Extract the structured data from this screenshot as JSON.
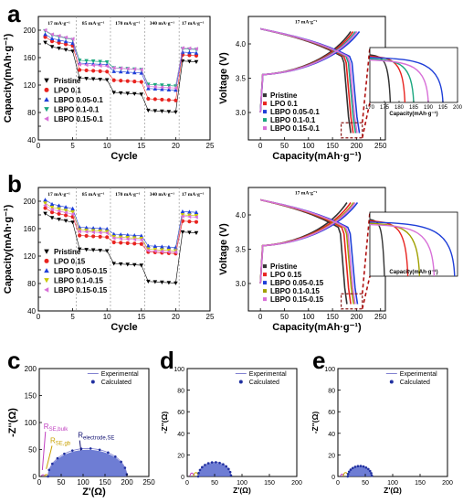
{
  "chart_data": [
    {
      "id": "a-left",
      "type": "scatter",
      "panel_label": "a",
      "xlabel": "Cycle",
      "ylabel": "Capacity(mAh·g⁻¹)",
      "xlim": [
        0,
        25
      ],
      "ylim": [
        40,
        220
      ],
      "xticks": [
        0,
        5,
        10,
        15,
        20,
        25
      ],
      "yticks": [
        40,
        60,
        80,
        100,
        120,
        140,
        160,
        180,
        200,
        220
      ],
      "ytick_labels": [
        "40",
        "",
        "80",
        "",
        "120",
        "",
        "160",
        "",
        "200",
        ""
      ],
      "rate_labels": [
        "17 mA·g⁻¹",
        "85 mA·g⁻¹",
        "170 mA·g⁻¹",
        "340 mA·g⁻¹",
        "17 mA·g⁻¹"
      ],
      "rate_dividers": [
        5.5,
        10.5,
        15.5,
        20.5
      ],
      "legend": "bottom-left",
      "series": [
        {
          "name": "Pristine",
          "color": "#000000",
          "marker": "tri-down",
          "levels": [
            178,
            130,
            109,
            83,
            155
          ]
        },
        {
          "name": "LPO 0.1",
          "color": "#e8231f",
          "marker": "circle",
          "levels": [
            186,
            142,
            127,
            100,
            164
          ]
        },
        {
          "name": "LBPO 0.05-0.1",
          "color": "#1f3fd8",
          "marker": "tri-up",
          "levels": [
            190,
            152,
            140,
            115,
            168
          ]
        },
        {
          "name": "LBPO 0.1-0.1",
          "color": "#1aa77f",
          "marker": "tri-down",
          "levels": [
            195,
            156,
            145,
            121,
            173
          ]
        },
        {
          "name": "LBPO 0.15-0.1",
          "color": "#d870d8",
          "marker": "tri-left",
          "levels": [
            196,
            150,
            145,
            118,
            174
          ]
        }
      ]
    },
    {
      "id": "a-right",
      "type": "line",
      "xlabel": "Capacity(mAh·g⁻¹)",
      "ylabel": "Voltage (V)",
      "xlim": [
        -25,
        260
      ],
      "ylim": [
        2.6,
        4.4
      ],
      "xticks": [
        0,
        50,
        100,
        150,
        200,
        250
      ],
      "yticks": [
        3.0,
        3.5,
        4.0
      ],
      "rate_text": "17 mA·g⁻¹",
      "legend": "bottom-center",
      "series": [
        {
          "name": "Pristine",
          "color": "#333333",
          "end_capacity": 188
        },
        {
          "name": "LPO 0.1",
          "color": "#e8231f",
          "end_capacity": 193
        },
        {
          "name": "LBPO 0.05-0.1",
          "color": "#1f3fd8",
          "end_capacity": 206
        },
        {
          "name": "LBPO 0.1-0.1",
          "color": "#1aa77f",
          "end_capacity": 198
        },
        {
          "name": "LBPO 0.15-0.1",
          "color": "#d870d8",
          "end_capacity": 201
        }
      ],
      "inset": {
        "xlabel": "Capacity(mAh·g⁻¹)",
        "xlim": [
          170,
          200
        ],
        "xticks": [
          170,
          175,
          180,
          185,
          190,
          195,
          200
        ],
        "ends": [
          177,
          182,
          195,
          185,
          190
        ]
      }
    },
    {
      "id": "b-left",
      "type": "scatter",
      "panel_label": "b",
      "xlabel": "Cycle",
      "ylabel": "Capacity(mAh·g⁻¹)",
      "xlim": [
        0,
        25
      ],
      "ylim": [
        40,
        220
      ],
      "xticks": [
        0,
        5,
        10,
        15,
        20,
        25
      ],
      "yticks": [
        40,
        60,
        80,
        100,
        120,
        140,
        160,
        180,
        200,
        220
      ],
      "ytick_labels": [
        "40",
        "",
        "80",
        "",
        "120",
        "",
        "160",
        "",
        "200",
        ""
      ],
      "rate_labels": [
        "17 mA·g⁻¹",
        "85 mA·g⁻¹",
        "170 mA·g⁻¹",
        "340 mA·g⁻¹",
        "17 mA·g⁻¹"
      ],
      "rate_dividers": [
        5.5,
        10.5,
        15.5,
        20.5
      ],
      "legend": "bottom-left",
      "series": [
        {
          "name": "Pristine",
          "color": "#000000",
          "marker": "tri-down",
          "levels": [
            178,
            130,
            109,
            83,
            155
          ]
        },
        {
          "name": "LPO 0.15",
          "color": "#e8231f",
          "marker": "circle",
          "levels": [
            186,
            150,
            140,
            126,
            171
          ]
        },
        {
          "name": "LBPO 0.05-0.15",
          "color": "#1f3fd8",
          "marker": "tri-up",
          "levels": [
            198,
            162,
            152,
            135,
            185
          ]
        },
        {
          "name": "LBPO 0.1-0.15",
          "color": "#c8c800",
          "marker": "tri-down",
          "levels": [
            193,
            158,
            148,
            130,
            180
          ]
        },
        {
          "name": "LBPO 0.15-0.15",
          "color": "#d870d8",
          "marker": "tri-left",
          "levels": [
            190,
            156,
            146,
            128,
            178
          ]
        }
      ]
    },
    {
      "id": "b-right",
      "type": "line",
      "xlabel": "Capacity(mAh·g⁻¹)",
      "ylabel": "Voltage (V)",
      "xlim": [
        -25,
        260
      ],
      "ylim": [
        2.6,
        4.4
      ],
      "xticks": [
        0,
        50,
        100,
        150,
        200,
        250
      ],
      "yticks": [
        3.0,
        3.5,
        4.0
      ],
      "rate_text": "17 mA·g⁻¹",
      "legend": "bottom-center",
      "series": [
        {
          "name": "Pristine",
          "color": "#333333",
          "end_capacity": 180
        },
        {
          "name": "LPO 0.15",
          "color": "#e8231f",
          "end_capacity": 188
        },
        {
          "name": "LBPO 0.05-0.15",
          "color": "#1f3fd8",
          "end_capacity": 202
        },
        {
          "name": "LBPO 0.1-0.15",
          "color": "#a0a000",
          "end_capacity": 194
        },
        {
          "name": "LBPO 0.15-0.15",
          "color": "#d870d8",
          "end_capacity": 197
        }
      ],
      "inset": {
        "xlabel": "Capacity(mAh·g⁻¹)",
        "xlim": [
          170,
          200
        ],
        "ends": [
          175,
          183,
          199,
          187,
          192
        ]
      }
    },
    {
      "id": "c",
      "type": "scatter",
      "panel_label": "c",
      "xlabel": "Z'(Ω)",
      "ylabel": "-Z''(Ω)",
      "xlim": [
        0,
        250
      ],
      "ylim": [
        0,
        200
      ],
      "xticks": [
        0,
        50,
        100,
        150,
        200,
        250
      ],
      "yticks": [
        0,
        50,
        100,
        150,
        200
      ],
      "legend": "top-right",
      "series": [
        {
          "name": "Experimental",
          "color": "#8080d0"
        },
        {
          "name": "Calculated",
          "color": "#2030a0"
        }
      ],
      "semicircles": [
        [
          5,
          12
        ],
        [
          12,
          20
        ],
        [
          20,
          200
        ]
      ],
      "annotations": [
        {
          "text": "R",
          "sub": "SE,bulk",
          "color": "#c040c0"
        },
        {
          "text": "R",
          "sub": "SE,gb",
          "color": "#c8a000"
        },
        {
          "text": "R",
          "sub": "electrode,SE",
          "color": "#101070"
        }
      ]
    },
    {
      "id": "d",
      "type": "scatter",
      "panel_label": "d",
      "xlabel": "Z'(Ω)",
      "ylabel": "-Z''(Ω)",
      "xlim": [
        0,
        200
      ],
      "ylim": [
        0,
        100
      ],
      "xticks": [
        0,
        50,
        100,
        150,
        200
      ],
      "yticks": [
        0,
        20,
        40,
        60,
        80,
        100
      ],
      "legend": "top-right",
      "series": [
        {
          "name": "Experimental",
          "color": "#8080d0"
        },
        {
          "name": "Calculated",
          "color": "#2030a0"
        }
      ],
      "semicircles": [
        [
          5,
          12
        ],
        [
          12,
          20
        ],
        [
          20,
          80
        ]
      ]
    },
    {
      "id": "e",
      "type": "scatter",
      "panel_label": "e",
      "xlabel": "Z'(Ω)",
      "ylabel": "-Z''(Ω)",
      "xlim": [
        0,
        200
      ],
      "ylim": [
        0,
        100
      ],
      "xticks": [
        0,
        50,
        100,
        150,
        200
      ],
      "yticks": [
        0,
        20,
        40,
        60,
        80,
        100
      ],
      "legend": "top-right",
      "series": [
        {
          "name": "Experimental",
          "color": "#8080d0"
        },
        {
          "name": "Calculated",
          "color": "#2030a0"
        }
      ],
      "semicircles": [
        [
          5,
          10
        ],
        [
          10,
          18
        ],
        [
          18,
          62
        ]
      ]
    }
  ]
}
